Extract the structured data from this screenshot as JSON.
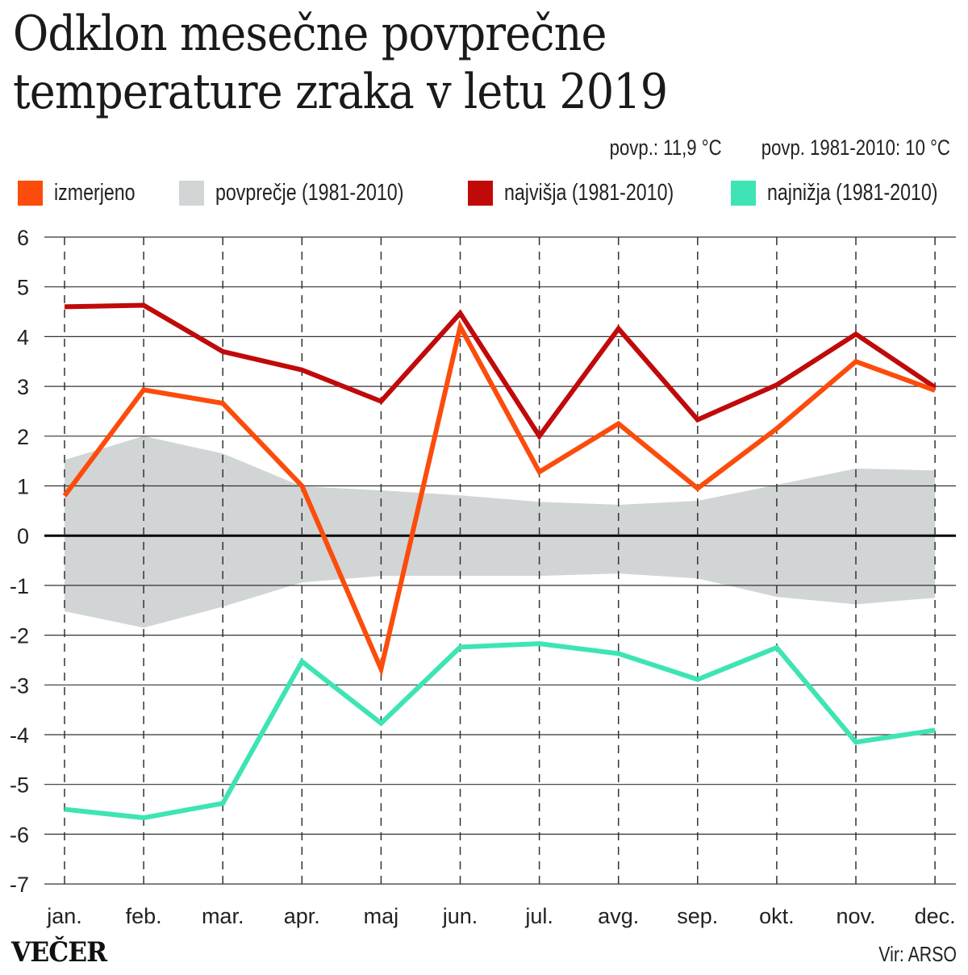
{
  "header": {
    "title_line1": "Odklon mesečne povprečne",
    "title_line2": "temperature zraka v letu 2019",
    "avg_2019": "povp.: 11,9 °C",
    "avg_baseline": "povp. 1981-2010: 10 °C"
  },
  "legend": [
    {
      "label": "izmerjeno",
      "color": "#fc4c0c"
    },
    {
      "label": "povprečje (1981-2010)",
      "color": "#d1d5d6"
    },
    {
      "label": "najvišja (1981-2010)",
      "color": "#c00a0a"
    },
    {
      "label": "najnižja (1981-2010)",
      "color": "#3ee4b4"
    }
  ],
  "footer": {
    "brand": "VEČER",
    "source": "Vir: ARSO"
  },
  "chart_data": {
    "type": "line",
    "title": "Odklon mesečne povprečne temperature zraka v letu 2019",
    "xlabel": "",
    "ylabel": "",
    "categories": [
      "jan.",
      "feb.",
      "mar.",
      "apr.",
      "maj",
      "jun.",
      "jul.",
      "avg.",
      "sep.",
      "okt.",
      "nov.",
      "dec."
    ],
    "yticks": [
      6,
      5,
      4,
      3,
      2,
      1,
      0,
      -1,
      -2,
      -3,
      -4,
      -5,
      -6,
      -7
    ],
    "ylim": [
      -7,
      6
    ],
    "grid": true,
    "legend_position": "top",
    "series": [
      {
        "name": "izmerjeno",
        "kind": "line",
        "color": "#fc4c0c",
        "values": [
          0.8,
          2.93,
          2.66,
          1.0,
          -2.68,
          4.2,
          1.28,
          2.25,
          0.95,
          2.15,
          3.5,
          2.92
        ]
      },
      {
        "name": "najvišja (1981-2010)",
        "kind": "line",
        "color": "#c00a0a",
        "values": [
          4.6,
          4.63,
          3.7,
          3.33,
          2.7,
          4.47,
          2.0,
          4.16,
          2.33,
          3.03,
          4.05,
          2.98
        ]
      },
      {
        "name": "najnižja (1981-2010)",
        "kind": "line",
        "color": "#3ee4b4",
        "values": [
          -5.5,
          -5.67,
          -5.38,
          -2.53,
          -3.77,
          -2.24,
          -2.17,
          -2.37,
          -2.89,
          -2.25,
          -4.15,
          -3.91
        ]
      },
      {
        "name": "povprečje (1981-2010)",
        "kind": "band",
        "color": "#d1d5d6",
        "upper": [
          1.52,
          2.0,
          1.65,
          0.99,
          0.91,
          0.81,
          0.68,
          0.62,
          0.7,
          1.02,
          1.35,
          1.31
        ],
        "lower": [
          -1.52,
          -1.85,
          -1.43,
          -0.94,
          -0.81,
          -0.81,
          -0.81,
          -0.76,
          -0.86,
          -1.23,
          -1.38,
          -1.25
        ]
      }
    ]
  }
}
